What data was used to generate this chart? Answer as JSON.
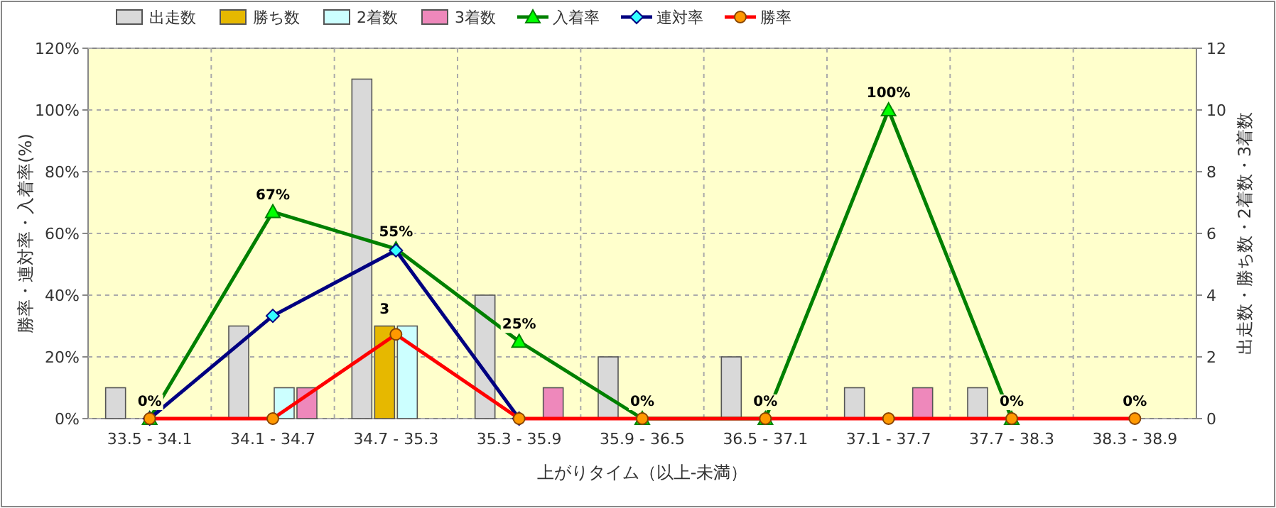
{
  "chart_data": {
    "type": "bar",
    "xlabel": "上がりタイム（以上-未満）",
    "ylabel": "勝率・連対率・入着率(%)",
    "y2label": "出走数・勝ち数・2着数・3着数",
    "categories": [
      "33.5 - 34.1",
      "34.1 - 34.7",
      "34.7 - 35.3",
      "35.3 - 35.9",
      "35.9 - 36.5",
      "36.5 - 37.1",
      "37.1 - 37.7",
      "37.7 - 38.3",
      "38.3 - 38.9"
    ],
    "ylim": [
      0,
      120
    ],
    "yticks": [
      {
        "value": 0,
        "label": "0%"
      },
      {
        "value": 20,
        "label": "20%"
      },
      {
        "value": 40,
        "label": "40%"
      },
      {
        "value": 60,
        "label": "60%"
      },
      {
        "value": 80,
        "label": "80%"
      },
      {
        "value": 100,
        "label": "100%"
      },
      {
        "value": 120,
        "label": "120%"
      }
    ],
    "y2lim": [
      0,
      12
    ],
    "y2ticks": [
      0,
      2,
      4,
      6,
      8,
      10,
      12
    ],
    "grid": true,
    "legend": "top",
    "series": [
      {
        "name": "出走数",
        "type": "bar",
        "axis": "y2",
        "color": "#d9d9d9",
        "values": [
          1,
          3,
          11,
          4,
          2,
          2,
          1,
          1,
          0
        ]
      },
      {
        "name": "勝ち数",
        "axis": "y2",
        "color": "#e6b800",
        "values": [
          0,
          0,
          3,
          0,
          0,
          0,
          0,
          0,
          0
        ],
        "value_labels": [
          null,
          null,
          "3",
          null,
          null,
          null,
          null,
          null,
          null
        ]
      },
      {
        "name": "2着数",
        "axis": "y2",
        "color": "#ccffff",
        "values": [
          0,
          1,
          3,
          0,
          0,
          0,
          0,
          0,
          0
        ]
      },
      {
        "name": "3着数",
        "axis": "y2",
        "color": "#ee88bb",
        "values": [
          0,
          1,
          0,
          1,
          0,
          0,
          1,
          0,
          0
        ]
      },
      {
        "name": "入着率",
        "type": "line",
        "marker": "triangle",
        "color": "#008000",
        "values": [
          0,
          67,
          55,
          25,
          0,
          0,
          100,
          0,
          null
        ],
        "value_labels": [
          "0%",
          "67%",
          "55%",
          "25%",
          "0%",
          "0%",
          "100%",
          "0%",
          null
        ]
      },
      {
        "name": "連対率",
        "type": "line",
        "marker": "diamond",
        "color": "#000080",
        "values": [
          0,
          33.3,
          54.5,
          0,
          null,
          null,
          null,
          null,
          null
        ]
      },
      {
        "name": "勝率",
        "type": "line",
        "marker": "circle",
        "color": "#ff0000",
        "values": [
          0,
          0,
          27.3,
          0,
          0,
          0,
          0,
          0,
          0
        ],
        "value_labels": [
          null,
          null,
          null,
          null,
          null,
          null,
          null,
          null,
          "0%"
        ]
      }
    ]
  }
}
